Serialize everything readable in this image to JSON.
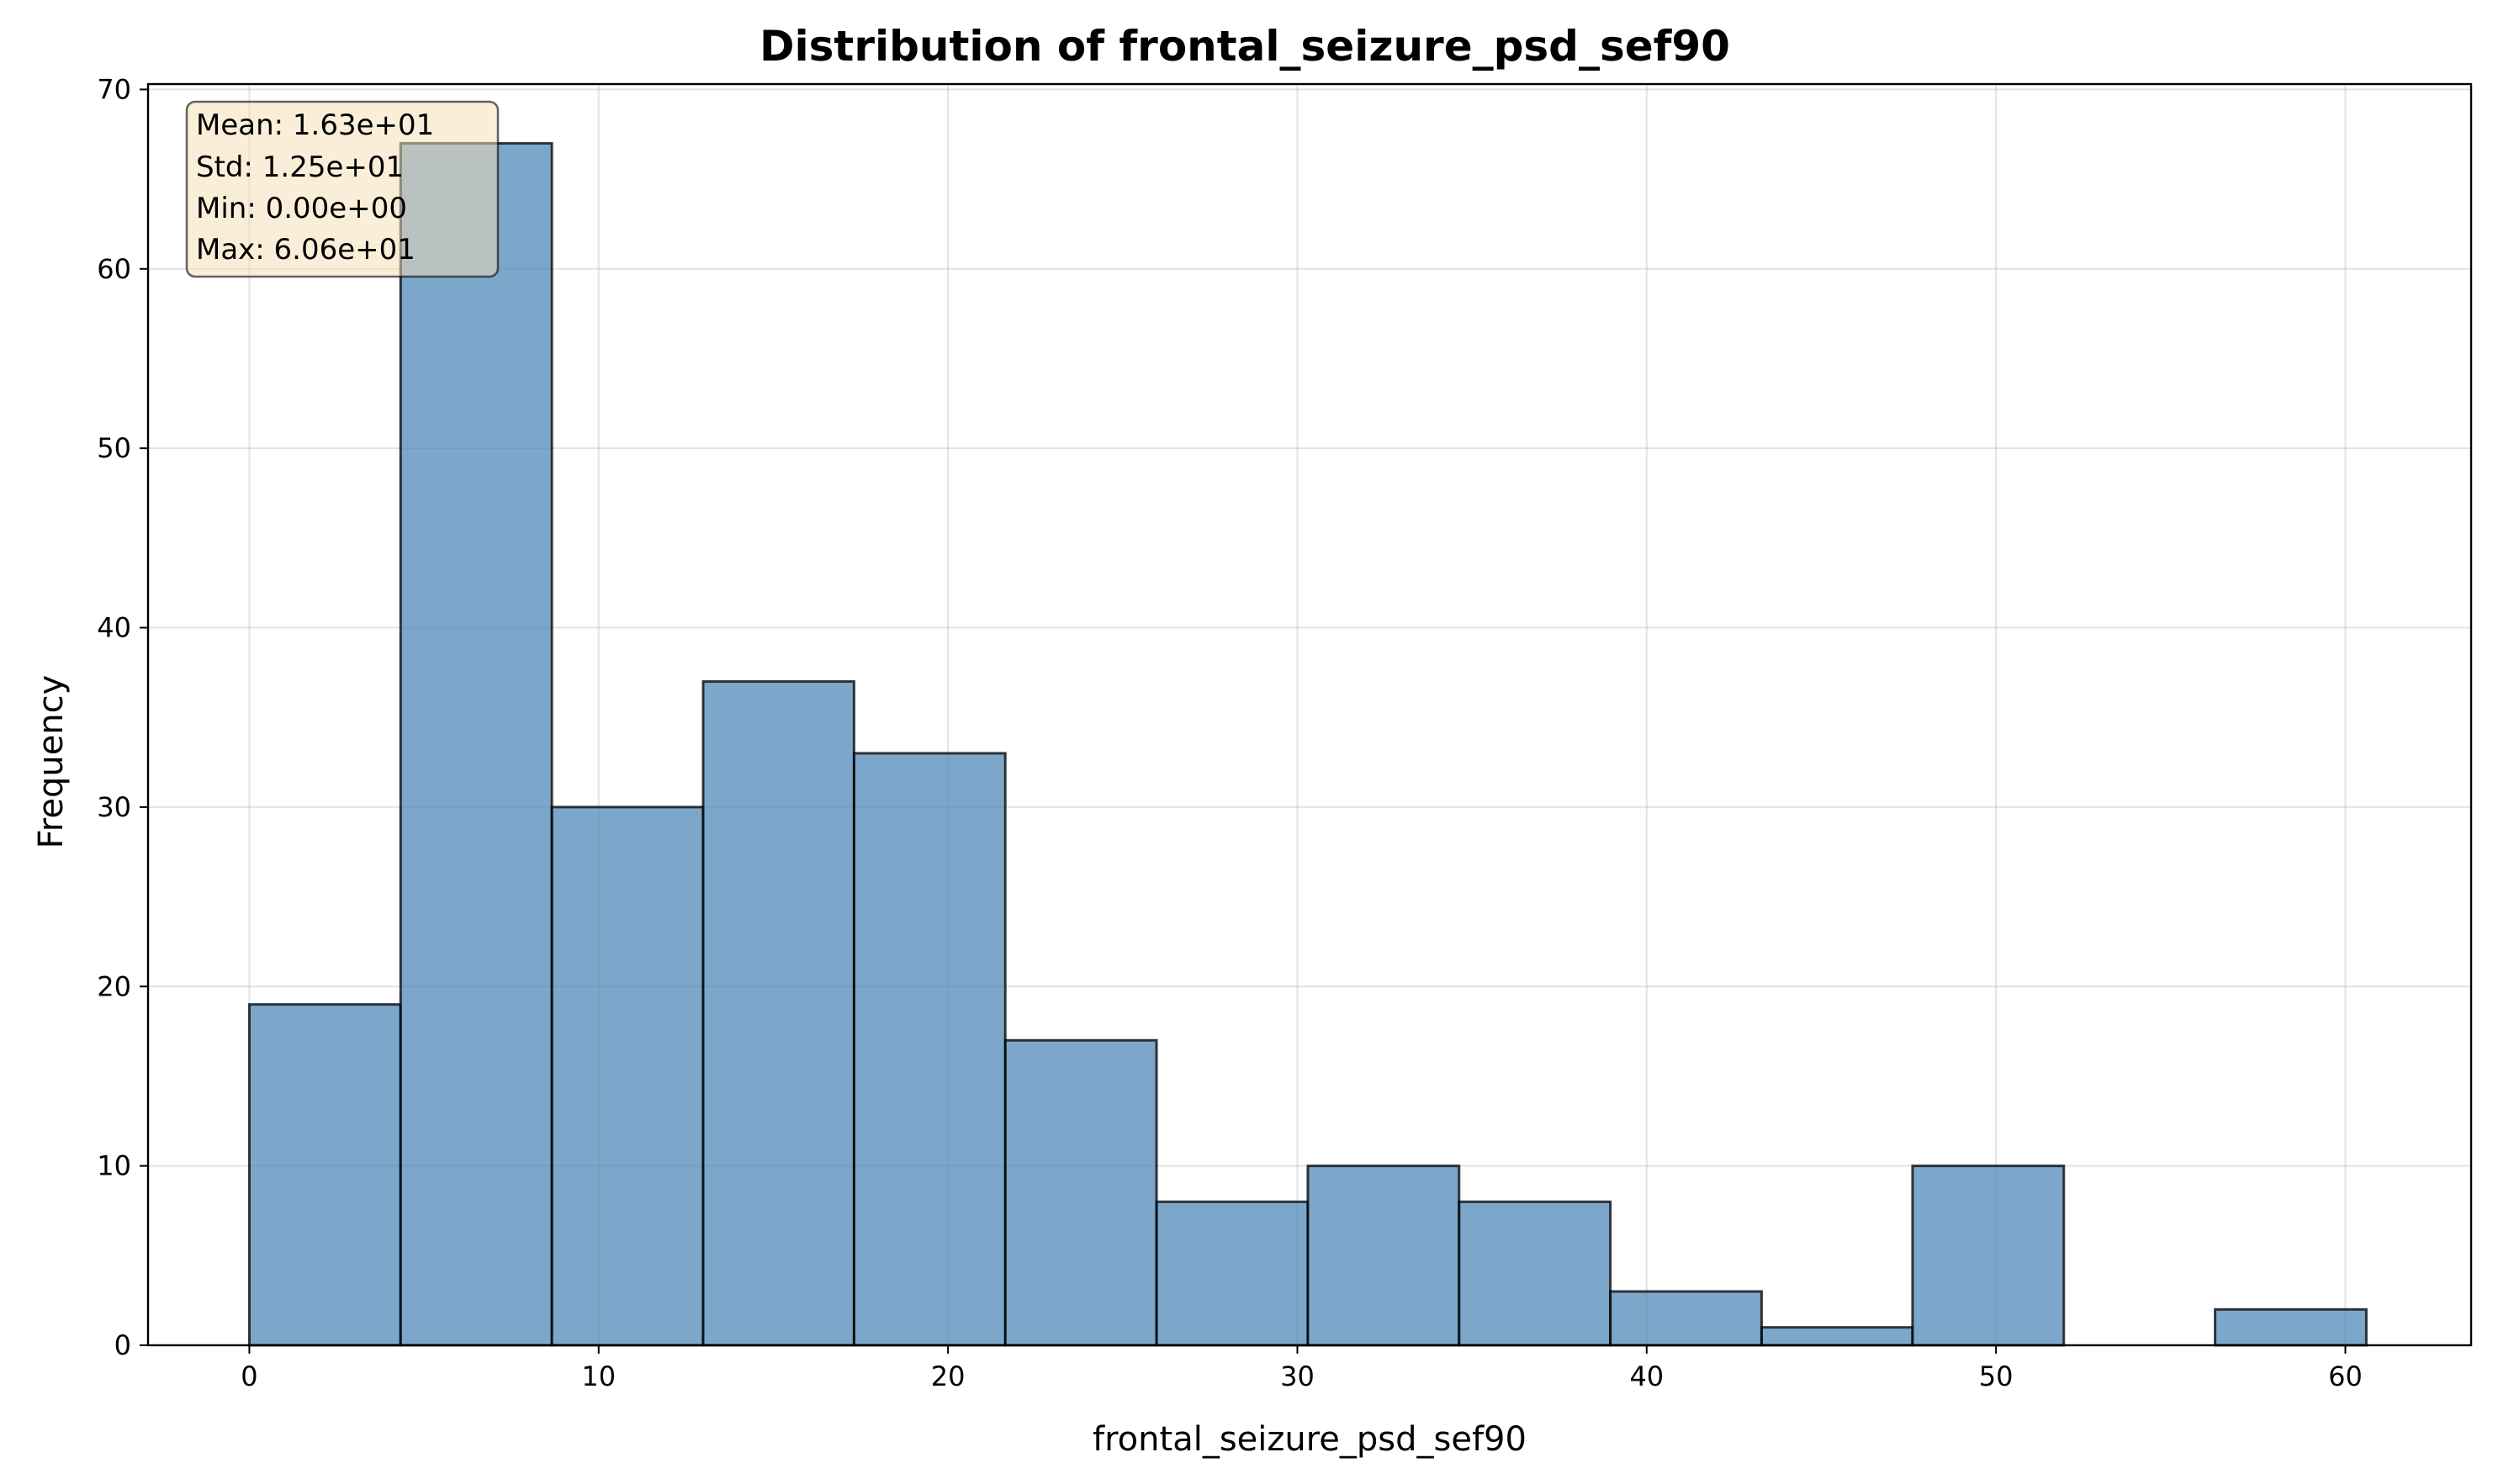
{
  "chart_data": {
    "type": "bar",
    "title": "Distribution of frontal_seizure_psd_sef90",
    "xlabel": "frontal_seizure_psd_sef90",
    "ylabel": "Frequency",
    "xlim": [
      -2.9,
      63.6
    ],
    "ylim": [
      0,
      70.3
    ],
    "xticks": [
      0,
      10,
      20,
      30,
      40,
      50,
      60
    ],
    "yticks": [
      0,
      10,
      20,
      30,
      40,
      50,
      60,
      70
    ],
    "bin_edges": [
      0,
      4.33,
      8.66,
      12.99,
      17.31,
      21.64,
      25.97,
      30.3,
      34.63,
      38.96,
      43.29,
      47.61,
      51.94,
      56.27,
      60.6
    ],
    "values": [
      19,
      67,
      30,
      37,
      33,
      17,
      8,
      10,
      8,
      3,
      1,
      10,
      0,
      2
    ],
    "grid": true,
    "colors": {
      "bar_fill": "#4682b4",
      "bar_edge": "#000000",
      "stats_box_fill": "#f5deb3"
    },
    "stats": [
      "Mean: 1.63e+01",
      "Std: 1.25e+01",
      "Min: 0.00e+00",
      "Max: 6.06e+01"
    ]
  }
}
